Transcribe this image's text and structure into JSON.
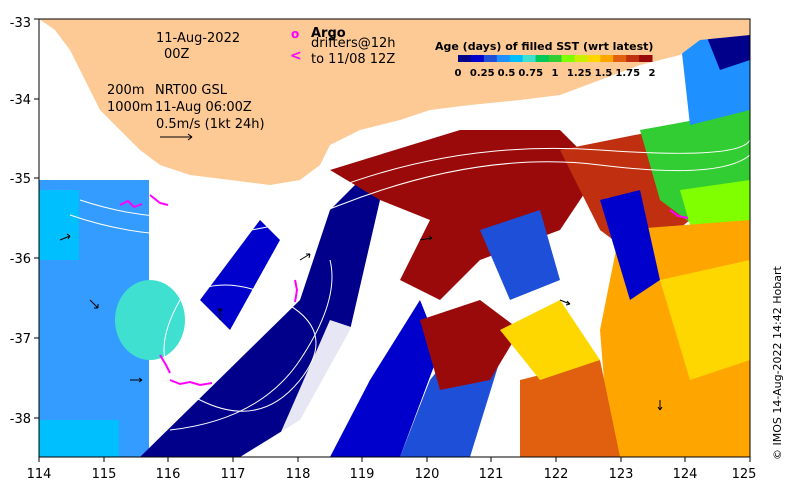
{
  "map": {
    "lon_ticks": [
      "114",
      "115",
      "116",
      "117",
      "118",
      "119",
      "120",
      "121",
      "122",
      "123",
      "124",
      "125"
    ],
    "lat_ticks": [
      "-33",
      "-34",
      "-35",
      "-36",
      "-37",
      "-38"
    ],
    "lon_range": [
      114,
      125
    ],
    "lat_range": [
      -38.5,
      -33
    ]
  },
  "annotations": {
    "date": "11-Aug-2022",
    "time": "00Z",
    "depth_top": "200m",
    "depth_bottom": "1000m",
    "model": "NRT00 GSL",
    "model_time": "11-Aug 06:00Z",
    "velocity_scale": "0.5m/s (1kt 24h)"
  },
  "drifter_legend": {
    "argo_label": "Argo",
    "drifters_label": "drifters@12h",
    "track_label": "to 11/08 12Z",
    "argo_marker": "o",
    "track_marker": "<"
  },
  "colorbar": {
    "title": "Age (days) of filled SST (wrt latest)",
    "ticks": [
      "0",
      "0.25",
      "0.5",
      "0.75",
      "1",
      "1.25",
      "1.5",
      "1.75",
      "2"
    ],
    "colors": [
      "#00008b",
      "#0000cd",
      "#1e4fd8",
      "#1e90ff",
      "#00bfff",
      "#40e0d0",
      "#00c957",
      "#32cd32",
      "#7fff00",
      "#c8f000",
      "#ffd700",
      "#ffa500",
      "#e06010",
      "#c03010",
      "#9b0a0a"
    ]
  },
  "credit": "© IMOS 14-Aug-2022 14:42 Hobart",
  "colors": {
    "land": "#fdc994",
    "ocean_missing": "#ffffff",
    "drifter": "#ff00ff",
    "contour": "#ffffff"
  }
}
